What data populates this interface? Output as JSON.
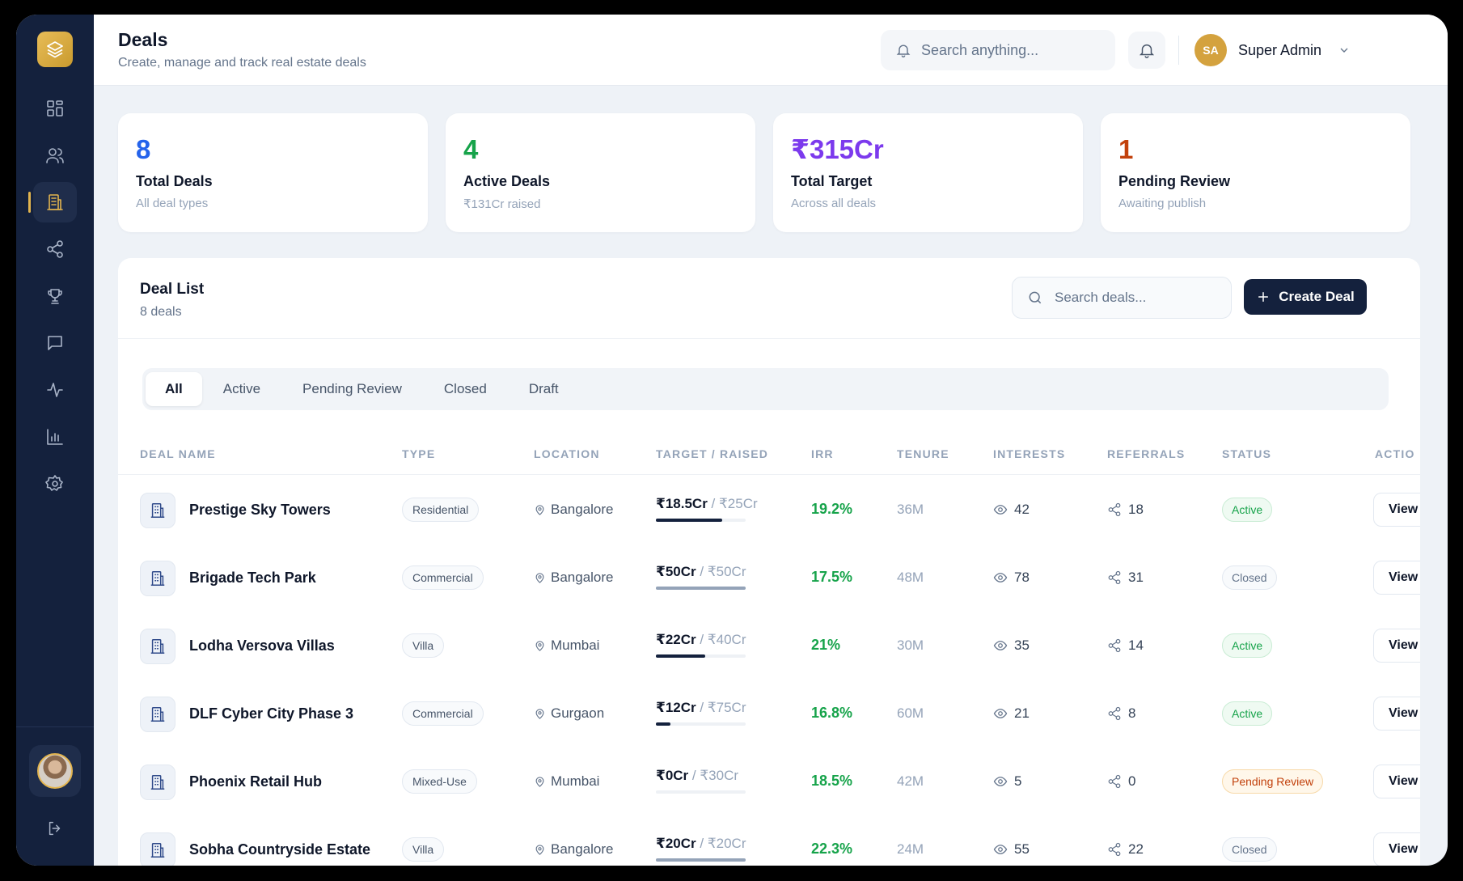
{
  "header": {
    "title": "Deals",
    "subtitle": "Create, manage and track real estate deals",
    "search_placeholder": "Search anything...",
    "user_initials": "SA",
    "user_name": "Super Admin"
  },
  "sidebar": {
    "items": [
      {
        "name": "dashboard",
        "icon": "grid-icon",
        "active": false
      },
      {
        "name": "users",
        "icon": "users-icon",
        "active": false
      },
      {
        "name": "deals",
        "icon": "building-icon",
        "active": true
      },
      {
        "name": "referrals",
        "icon": "share-icon",
        "active": false
      },
      {
        "name": "rewards",
        "icon": "trophy-icon",
        "active": false
      },
      {
        "name": "messages",
        "icon": "chat-icon",
        "active": false
      },
      {
        "name": "activity",
        "icon": "activity-icon",
        "active": false
      },
      {
        "name": "reports",
        "icon": "bar-chart-icon",
        "active": false
      },
      {
        "name": "settings",
        "icon": "gear-icon",
        "active": false
      }
    ]
  },
  "stats": [
    {
      "value": "8",
      "label": "Total Deals",
      "sub": "All deal types",
      "color": "#2563eb"
    },
    {
      "value": "4",
      "label": "Active Deals",
      "sub": "₹131Cr raised",
      "color": "#16a34a"
    },
    {
      "value": "₹315Cr",
      "label": "Total Target",
      "sub": "Across all deals",
      "color": "#7c3aed"
    },
    {
      "value": "1",
      "label": "Pending Review",
      "sub": "Awaiting publish",
      "color": "#c2410c"
    }
  ],
  "deal_list": {
    "title": "Deal List",
    "count": "8 deals",
    "search_placeholder": "Search deals...",
    "create_label": "Create Deal",
    "tabs": [
      "All",
      "Active",
      "Pending Review",
      "Closed",
      "Draft"
    ],
    "active_tab": "All",
    "columns": [
      "DEAL NAME",
      "TYPE",
      "LOCATION",
      "TARGET / RAISED",
      "IRR",
      "TENURE",
      "INTERESTS",
      "REFERRALS",
      "STATUS",
      "ACTIO"
    ],
    "rows": [
      {
        "name": "Prestige Sky Towers",
        "type": "Residential",
        "location": "Bangalore",
        "raised": "₹18.5Cr",
        "target": "₹25Cr",
        "progress": 0.74,
        "irr": "19.2%",
        "tenure": "36M",
        "interests": "42",
        "referrals": "18",
        "status": "Active",
        "status_kind": "active",
        "action": "View"
      },
      {
        "name": "Brigade Tech Park",
        "type": "Commercial",
        "location": "Bangalore",
        "raised": "₹50Cr",
        "target": "₹50Cr",
        "progress": 1.0,
        "irr": "17.5%",
        "tenure": "48M",
        "interests": "78",
        "referrals": "31",
        "status": "Closed",
        "status_kind": "closed",
        "action": "View"
      },
      {
        "name": "Lodha Versova Villas",
        "type": "Villa",
        "location": "Mumbai",
        "raised": "₹22Cr",
        "target": "₹40Cr",
        "progress": 0.55,
        "irr": "21%",
        "tenure": "30M",
        "interests": "35",
        "referrals": "14",
        "status": "Active",
        "status_kind": "active",
        "action": "View"
      },
      {
        "name": "DLF Cyber City Phase 3",
        "type": "Commercial",
        "location": "Gurgaon",
        "raised": "₹12Cr",
        "target": "₹75Cr",
        "progress": 0.16,
        "irr": "16.8%",
        "tenure": "60M",
        "interests": "21",
        "referrals": "8",
        "status": "Active",
        "status_kind": "active",
        "action": "View"
      },
      {
        "name": "Phoenix Retail Hub",
        "type": "Mixed-Use",
        "location": "Mumbai",
        "raised": "₹0Cr",
        "target": "₹30Cr",
        "progress": 0.0,
        "irr": "18.5%",
        "tenure": "42M",
        "interests": "5",
        "referrals": "0",
        "status": "Pending Review",
        "status_kind": "pending",
        "action": "View"
      },
      {
        "name": "Sobha Countryside Estate",
        "type": "Villa",
        "location": "Bangalore",
        "raised": "₹20Cr",
        "target": "₹20Cr",
        "progress": 1.0,
        "irr": "22.3%",
        "tenure": "24M",
        "interests": "55",
        "referrals": "22",
        "status": "Closed",
        "status_kind": "closed",
        "action": "View"
      }
    ]
  }
}
